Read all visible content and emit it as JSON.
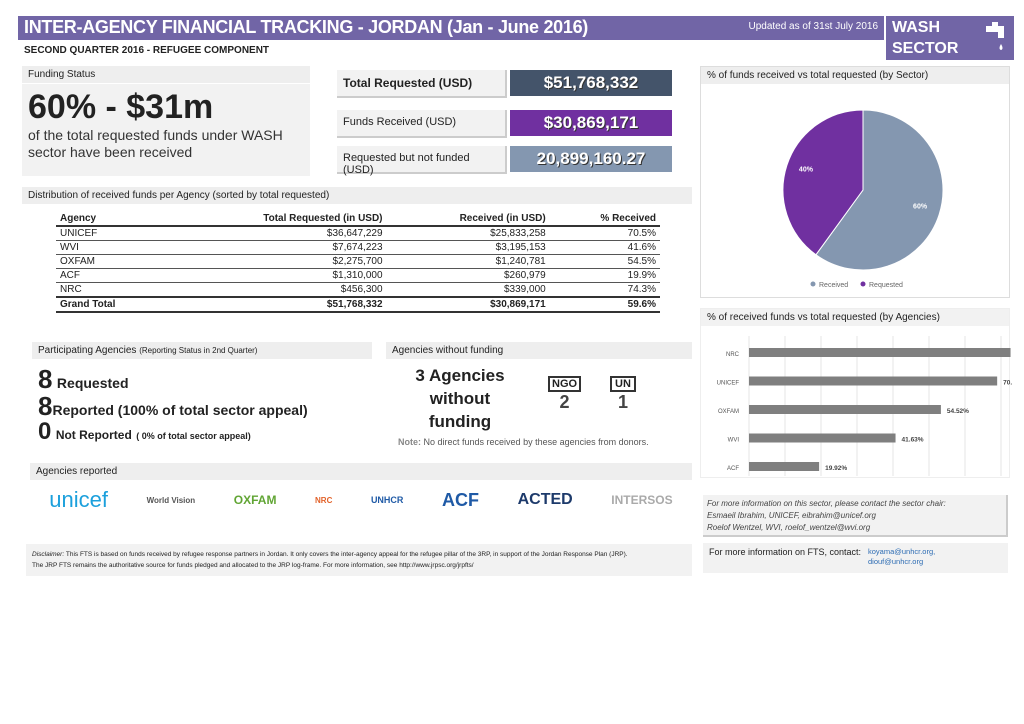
{
  "header": {
    "title": "INTER-AGENCY FINANCIAL TRACKING - JORDAN (Jan - June 2016)",
    "updated": "Updated as of 31st July 2016",
    "sector_line1": "WASH",
    "sector_line2": "SECTOR",
    "subtitle": "SECOND QUARTER 2016 - REFUGEE COMPONENT",
    "icon": "water-tap-icon"
  },
  "funding_status": {
    "label": "Funding Status",
    "headline": "60% - $31m",
    "desc": "of the total requested funds under WASH sector have been received"
  },
  "totals": {
    "requested_label": "Total Requested (USD)",
    "requested": "$51,768,332",
    "received_label": "Funds Received (USD)",
    "received": "$30,869,171",
    "unfunded_label": "Requested but not funded (USD)",
    "unfunded": "20,899,160.27",
    "colors": {
      "requested": "#44546a",
      "received": "#7030a0",
      "unfunded": "#8497b0"
    }
  },
  "distribution": {
    "title": "Distribution of received funds per Agency (sorted by total requested)",
    "columns": [
      "Agency",
      "Total Requested (in USD)",
      "Received (in USD)",
      "% Received"
    ],
    "rows": [
      [
        "UNICEF",
        "$36,647,229",
        "$25,833,258",
        "70.5%"
      ],
      [
        "WVI",
        "$7,674,223",
        "$3,195,153",
        "41.6%"
      ],
      [
        "OXFAM",
        "$2,275,700",
        "$1,240,781",
        "54.5%"
      ],
      [
        "ACF",
        "$1,310,000",
        "$260,979",
        "19.9%"
      ],
      [
        "NRC",
        "$456,300",
        "$339,000",
        "74.3%"
      ]
    ],
    "total": [
      "Grand Total",
      "$51,768,332",
      "$30,869,171",
      "59.6%"
    ]
  },
  "participating": {
    "title": "Participating Agencies",
    "title_note": "(Reporting Status in 2nd Quarter)",
    "requested_n": "8",
    "requested_label": "Requested",
    "reported_n": "8",
    "reported_label": "Reported (100% of total sector appeal)",
    "not_reported_n": "0",
    "not_reported_label": "Not Reported",
    "not_reported_note": "( 0% of total sector appeal)"
  },
  "without_funding": {
    "title": "Agencies without funding",
    "text": "3 Agencies without funding",
    "ngo_label": "NGO",
    "ngo_n": "2",
    "un_label": "UN",
    "un_n": "1",
    "note_label": "Note:",
    "note": "No direct funds received by these agencies from donors."
  },
  "reported": {
    "title": "Agencies reported",
    "logos": [
      "unicef",
      "World Vision",
      "OXFAM",
      "NRC",
      "UNHCR",
      "ACF",
      "ACTED",
      "INTERSOS"
    ]
  },
  "disclaimer": {
    "label": "Disclaimer:",
    "text1": "This FTS is based on funds received by refugee response partners in Jordan. It only covers the inter-agency appeal for the refugee pillar of the 3RP, in support of the Jordan Response Plan (JRP).",
    "text2": "The JRP FTS remains the authoritative source for funds pledged and allocated to the JRP log-frame. For more information, see",
    "link": "http://www.jrpsc.org/jrpfts/"
  },
  "contact": {
    "line1": "For more information on this sector, please contact the sector chair:",
    "line2": "Esmaeil Ibrahim, UNICEF, eibrahim@unicef.org",
    "line3": "Roelof Wentzel, WVI, roelof_wentzel@wvi.org",
    "fts_label": "For more information on FTS, contact:",
    "email1": "koyama@unhcr.org,",
    "email2": "diouf@unhcr.org"
  },
  "chart_data": [
    {
      "type": "pie",
      "title": "% of funds received vs total requested (by Sector)",
      "categories": [
        "Received",
        "Requested"
      ],
      "values": [
        60,
        40
      ],
      "labels": [
        "60%",
        "40%"
      ],
      "colors": [
        "#8497b0",
        "#7030a0"
      ],
      "legend": "bottom"
    },
    {
      "type": "bar",
      "orientation": "horizontal",
      "title": "% of received funds vs total requested (by Agencies)",
      "categories": [
        "NRC",
        "UNICEF",
        "OXFAM",
        "WVI",
        "ACF"
      ],
      "values": [
        74.3,
        70.5,
        54.52,
        41.63,
        19.92
      ],
      "labels": [
        "",
        "70.",
        "54.52%",
        "41.63%",
        "19.92%"
      ],
      "color": "#7f7f7f",
      "grid": true
    }
  ]
}
